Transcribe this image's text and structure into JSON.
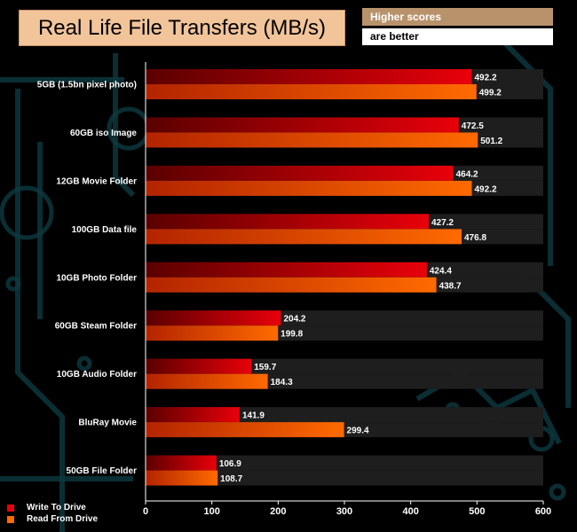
{
  "header": {
    "title": "Real Life File Transfers (MB/s)",
    "note_line1": "Higher scores",
    "note_line2": "are better"
  },
  "colors": {
    "background": "#000000",
    "write": "#e8000a",
    "read": "#ff6a00",
    "track": "#1e1e1e",
    "decor": "#0c3a40",
    "axis_text": "#ffffff"
  },
  "chart_data": {
    "type": "bar",
    "orientation": "horizontal",
    "categories": [
      "5GB (1.5bn pixel photo)",
      "60GB iso Image",
      "12GB Movie Folder",
      "100GB Data file",
      "10GB Photo Folder",
      "60GB Steam Folder",
      "10GB Audio Folder",
      "BluRay Movie",
      "50GB File Folder"
    ],
    "series": [
      {
        "name": "Write To  Drive",
        "values": [
          492.2,
          472.5,
          464.2,
          427.2,
          424.4,
          204.2,
          159.7,
          141.9,
          106.9
        ]
      },
      {
        "name": "Read From  Drive",
        "values": [
          499.2,
          501.2,
          492.2,
          476.8,
          438.7,
          199.8,
          184.3,
          299.4,
          108.7
        ]
      }
    ],
    "value_labels": [
      [
        "492.2",
        "472.5",
        "464.2",
        "427.2",
        "424.4",
        "204.2",
        "159.7",
        "141.9",
        "106.9"
      ],
      [
        "499.2",
        "501.2",
        "492.2",
        "476.8",
        "438.7",
        "199.8",
        "184.3",
        "299.4",
        "108.7"
      ]
    ],
    "xlim": [
      0,
      600
    ],
    "xticks": [
      "0",
      "100",
      "200",
      "300",
      "400",
      "500",
      "600"
    ],
    "grid": false,
    "legend_position": "bottom-left"
  }
}
